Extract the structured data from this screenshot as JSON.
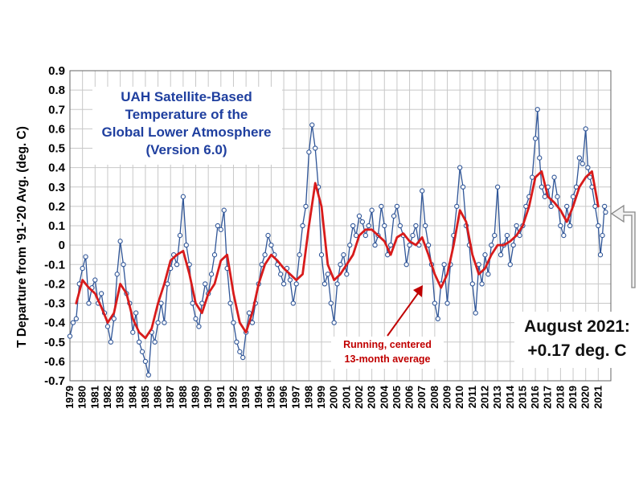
{
  "chart_data": {
    "type": "line",
    "title_lines": [
      "UAH Satellite-Based",
      "Temperature of the",
      "Global Lower Atmosphere",
      "(Version 6.0)"
    ],
    "ylabel": "T Departure from '91-'20 Avg. (deg. C)",
    "xlabel": "",
    "ylim": [
      -0.7,
      0.9
    ],
    "y_ticks": [
      "0.9",
      "0.8",
      "0.7",
      "0.6",
      "0.5",
      "0.4",
      "0.3",
      "0.2",
      "0.1",
      "0",
      "-0.1",
      "-0.2",
      "-0.3",
      "-0.4",
      "-0.5",
      "-0.6",
      "-0.7"
    ],
    "x_ticks": [
      "1979",
      "1980",
      "1981",
      "1982",
      "1983",
      "1984",
      "1985",
      "1986",
      "1987",
      "1988",
      "1989",
      "1990",
      "1991",
      "1992",
      "1993",
      "1994",
      "1995",
      "1996",
      "1997",
      "1998",
      "1999",
      "2000",
      "2001",
      "2002",
      "2003",
      "2004",
      "2005",
      "2006",
      "2007",
      "2008",
      "2009",
      "2010",
      "2011",
      "2012",
      "2013",
      "2014",
      "2015",
      "2016",
      "2017",
      "2018",
      "2019",
      "2020",
      "2021"
    ],
    "grid": true,
    "legend": "none",
    "series": [
      {
        "role": "monthly",
        "color": "#2f5597",
        "x": [
          1979.0,
          1979.25,
          1979.5,
          1979.75,
          1980.0,
          1980.25,
          1980.5,
          1980.75,
          1981.0,
          1981.25,
          1981.5,
          1981.75,
          1982.0,
          1982.25,
          1982.5,
          1982.75,
          1983.0,
          1983.25,
          1983.5,
          1983.75,
          1984.0,
          1984.25,
          1984.5,
          1984.75,
          1985.0,
          1985.25,
          1985.5,
          1985.75,
          1986.0,
          1986.25,
          1986.5,
          1986.75,
          1987.0,
          1987.25,
          1987.5,
          1987.75,
          1988.0,
          1988.25,
          1988.5,
          1988.75,
          1989.0,
          1989.25,
          1989.5,
          1989.75,
          1990.0,
          1990.25,
          1990.5,
          1990.75,
          1991.0,
          1991.25,
          1991.5,
          1991.75,
          1992.0,
          1992.25,
          1992.5,
          1992.75,
          1993.0,
          1993.25,
          1993.5,
          1993.75,
          1994.0,
          1994.25,
          1994.5,
          1994.75,
          1995.0,
          1995.25,
          1995.5,
          1995.75,
          1996.0,
          1996.25,
          1996.5,
          1996.75,
          1997.0,
          1997.25,
          1997.5,
          1997.75,
          1998.0,
          1998.25,
          1998.5,
          1998.75,
          1999.0,
          1999.25,
          1999.5,
          1999.75,
          2000.0,
          2000.25,
          2000.5,
          2000.75,
          2001.0,
          2001.25,
          2001.5,
          2001.75,
          2002.0,
          2002.25,
          2002.5,
          2002.75,
          2003.0,
          2003.25,
          2003.5,
          2003.75,
          2004.0,
          2004.25,
          2004.5,
          2004.75,
          2005.0,
          2005.25,
          2005.5,
          2005.75,
          2006.0,
          2006.25,
          2006.5,
          2006.75,
          2007.0,
          2007.25,
          2007.5,
          2007.75,
          2008.0,
          2008.25,
          2008.5,
          2008.75,
          2009.0,
          2009.25,
          2009.5,
          2009.75,
          2010.0,
          2010.25,
          2010.5,
          2010.75,
          2011.0,
          2011.25,
          2011.5,
          2011.75,
          2012.0,
          2012.25,
          2012.5,
          2012.75,
          2013.0,
          2013.25,
          2013.5,
          2013.75,
          2014.0,
          2014.25,
          2014.5,
          2014.75,
          2015.0,
          2015.25,
          2015.5,
          2015.75,
          2016.0,
          2016.17,
          2016.33,
          2016.5,
          2016.75,
          2017.0,
          2017.25,
          2017.5,
          2017.75,
          2018.0,
          2018.25,
          2018.5,
          2018.75,
          2019.0,
          2019.25,
          2019.5,
          2019.75,
          2020.0,
          2020.17,
          2020.33,
          2020.5,
          2020.75,
          2021.0,
          2021.17,
          2021.33,
          2021.5,
          2021.58
        ],
        "values": [
          -0.47,
          -0.4,
          -0.38,
          -0.2,
          -0.12,
          -0.06,
          -0.3,
          -0.22,
          -0.18,
          -0.3,
          -0.25,
          -0.35,
          -0.42,
          -0.5,
          -0.38,
          -0.15,
          0.02,
          -0.1,
          -0.25,
          -0.3,
          -0.45,
          -0.35,
          -0.5,
          -0.55,
          -0.6,
          -0.67,
          -0.45,
          -0.5,
          -0.4,
          -0.3,
          -0.4,
          -0.2,
          -0.12,
          -0.05,
          -0.1,
          0.05,
          0.25,
          0.0,
          -0.1,
          -0.3,
          -0.38,
          -0.42,
          -0.3,
          -0.2,
          -0.25,
          -0.15,
          -0.05,
          0.1,
          0.08,
          0.18,
          -0.12,
          -0.3,
          -0.4,
          -0.5,
          -0.55,
          -0.58,
          -0.45,
          -0.35,
          -0.4,
          -0.3,
          -0.2,
          -0.1,
          -0.05,
          0.05,
          0.0,
          -0.05,
          -0.1,
          -0.15,
          -0.2,
          -0.12,
          -0.18,
          -0.3,
          -0.2,
          -0.05,
          0.1,
          0.2,
          0.48,
          0.62,
          0.5,
          0.3,
          -0.05,
          -0.2,
          -0.15,
          -0.3,
          -0.4,
          -0.2,
          -0.1,
          -0.05,
          -0.15,
          0.0,
          0.1,
          0.05,
          0.15,
          0.12,
          0.05,
          0.1,
          0.18,
          0.0,
          0.05,
          0.2,
          0.1,
          -0.05,
          0.0,
          0.15,
          0.2,
          0.1,
          0.05,
          -0.1,
          0.0,
          0.05,
          0.1,
          0.0,
          0.28,
          0.1,
          0.0,
          -0.1,
          -0.3,
          -0.38,
          -0.2,
          -0.1,
          -0.3,
          -0.1,
          0.05,
          0.2,
          0.4,
          0.3,
          0.1,
          0.0,
          -0.2,
          -0.35,
          -0.1,
          -0.2,
          -0.05,
          -0.15,
          0.0,
          0.05,
          0.3,
          -0.05,
          0.0,
          0.05,
          -0.1,
          0.0,
          0.1,
          0.05,
          0.1,
          0.2,
          0.25,
          0.35,
          0.55,
          0.7,
          0.45,
          0.3,
          0.25,
          0.3,
          0.2,
          0.35,
          0.25,
          0.1,
          0.05,
          0.2,
          0.1,
          0.25,
          0.3,
          0.45,
          0.42,
          0.6,
          0.4,
          0.35,
          0.3,
          0.2,
          0.1,
          -0.05,
          0.05,
          0.2,
          0.17
        ]
      },
      {
        "role": "running-average",
        "name": "Running, centered 13-month average",
        "color": "#d81b1b",
        "x": [
          1979.5,
          1980.0,
          1980.5,
          1981.0,
          1981.5,
          1982.0,
          1982.5,
          1983.0,
          1983.5,
          1984.0,
          1984.5,
          1985.0,
          1985.5,
          1986.0,
          1986.5,
          1987.0,
          1987.5,
          1988.0,
          1988.5,
          1989.0,
          1989.5,
          1990.0,
          1990.5,
          1991.0,
          1991.5,
          1992.0,
          1992.5,
          1993.0,
          1993.5,
          1994.0,
          1994.5,
          1995.0,
          1995.5,
          1996.0,
          1996.5,
          1997.0,
          1997.5,
          1998.0,
          1998.5,
          1999.0,
          1999.5,
          2000.0,
          2000.5,
          2001.0,
          2001.5,
          2002.0,
          2002.5,
          2003.0,
          2003.5,
          2004.0,
          2004.5,
          2005.0,
          2005.5,
          2006.0,
          2006.5,
          2007.0,
          2007.5,
          2008.0,
          2008.5,
          2009.0,
          2009.5,
          2010.0,
          2010.5,
          2011.0,
          2011.5,
          2012.0,
          2012.5,
          2013.0,
          2013.5,
          2014.0,
          2014.5,
          2015.0,
          2015.5,
          2016.0,
          2016.5,
          2017.0,
          2017.5,
          2018.0,
          2018.5,
          2019.0,
          2019.5,
          2020.0,
          2020.5,
          2021.0
        ],
        "values": [
          -0.3,
          -0.18,
          -0.22,
          -0.25,
          -0.32,
          -0.4,
          -0.35,
          -0.2,
          -0.25,
          -0.38,
          -0.45,
          -0.48,
          -0.43,
          -0.3,
          -0.2,
          -0.08,
          -0.05,
          -0.03,
          -0.15,
          -0.3,
          -0.35,
          -0.25,
          -0.2,
          -0.08,
          -0.05,
          -0.25,
          -0.4,
          -0.45,
          -0.35,
          -0.2,
          -0.1,
          -0.05,
          -0.08,
          -0.12,
          -0.15,
          -0.18,
          -0.15,
          0.1,
          0.32,
          0.2,
          -0.1,
          -0.18,
          -0.15,
          -0.1,
          -0.05,
          0.05,
          0.08,
          0.08,
          0.05,
          0.02,
          -0.05,
          0.04,
          0.06,
          0.02,
          0.0,
          0.04,
          -0.05,
          -0.15,
          -0.22,
          -0.15,
          0.0,
          0.18,
          0.12,
          -0.05,
          -0.15,
          -0.12,
          -0.05,
          0.0,
          0.0,
          0.02,
          0.05,
          0.1,
          0.2,
          0.35,
          0.38,
          0.25,
          0.22,
          0.18,
          0.12,
          0.2,
          0.3,
          0.35,
          0.38,
          0.2
        ]
      }
    ],
    "annotations": {
      "running_avg_lines": [
        "Running, centered",
        "13-month average"
      ],
      "latest_lines": [
        "August 2021:",
        "+0.17 deg. C"
      ]
    }
  }
}
